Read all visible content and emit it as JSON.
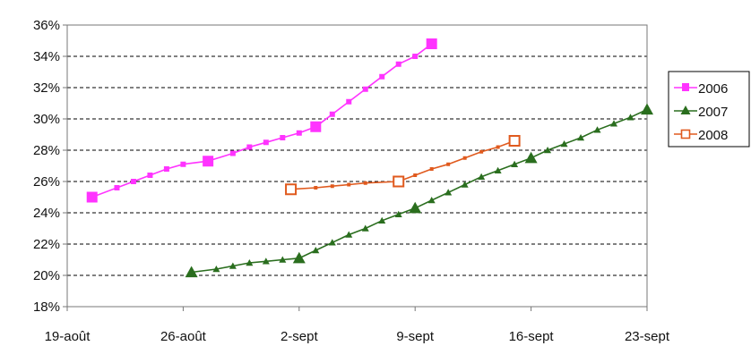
{
  "chart_data": {
    "type": "line",
    "title": "",
    "xlabel": "",
    "ylabel": "",
    "x_ticks": [
      "19-août",
      "26-août",
      "2-sept",
      "9-sept",
      "16-sept",
      "23-sept"
    ],
    "x_range_days": [
      0,
      35
    ],
    "ylim": [
      0.18,
      0.36
    ],
    "y_ticks": [
      "18%",
      "20%",
      "22%",
      "24%",
      "26%",
      "28%",
      "30%",
      "32%",
      "34%",
      "36%"
    ],
    "grid": "horizontal dashed",
    "legend_position": "right",
    "series": [
      {
        "name": "2006",
        "color": "#ff33ff",
        "marker": "square-filled",
        "points": [
          {
            "x": 1.5,
            "y": 0.25,
            "big": true
          },
          {
            "x": 3,
            "y": 0.256
          },
          {
            "x": 4,
            "y": 0.26
          },
          {
            "x": 5,
            "y": 0.264
          },
          {
            "x": 6,
            "y": 0.268
          },
          {
            "x": 7,
            "y": 0.271
          },
          {
            "x": 8.5,
            "y": 0.273,
            "big": true
          },
          {
            "x": 10,
            "y": 0.278
          },
          {
            "x": 11,
            "y": 0.282
          },
          {
            "x": 12,
            "y": 0.285
          },
          {
            "x": 13,
            "y": 0.288
          },
          {
            "x": 14,
            "y": 0.291
          },
          {
            "x": 15,
            "y": 0.295,
            "big": true
          },
          {
            "x": 16,
            "y": 0.303
          },
          {
            "x": 17,
            "y": 0.311
          },
          {
            "x": 18,
            "y": 0.319
          },
          {
            "x": 19,
            "y": 0.327
          },
          {
            "x": 20,
            "y": 0.335
          },
          {
            "x": 21,
            "y": 0.34
          },
          {
            "x": 22,
            "y": 0.348,
            "big": true
          }
        ]
      },
      {
        "name": "2007",
        "color": "#2a6e1e",
        "marker": "triangle-filled",
        "points": [
          {
            "x": 7.5,
            "y": 0.202,
            "big": true
          },
          {
            "x": 9,
            "y": 0.204
          },
          {
            "x": 10,
            "y": 0.206
          },
          {
            "x": 11,
            "y": 0.208
          },
          {
            "x": 12,
            "y": 0.209
          },
          {
            "x": 13,
            "y": 0.21
          },
          {
            "x": 14,
            "y": 0.211,
            "big": true
          },
          {
            "x": 15,
            "y": 0.216
          },
          {
            "x": 16,
            "y": 0.221
          },
          {
            "x": 17,
            "y": 0.226
          },
          {
            "x": 18,
            "y": 0.23
          },
          {
            "x": 19,
            "y": 0.235
          },
          {
            "x": 20,
            "y": 0.239
          },
          {
            "x": 21,
            "y": 0.243,
            "big": true
          },
          {
            "x": 22,
            "y": 0.248
          },
          {
            "x": 23,
            "y": 0.253
          },
          {
            "x": 24,
            "y": 0.258
          },
          {
            "x": 25,
            "y": 0.263
          },
          {
            "x": 26,
            "y": 0.267
          },
          {
            "x": 27,
            "y": 0.271
          },
          {
            "x": 28,
            "y": 0.275,
            "big": true
          },
          {
            "x": 29,
            "y": 0.28
          },
          {
            "x": 30,
            "y": 0.284
          },
          {
            "x": 31,
            "y": 0.288
          },
          {
            "x": 32,
            "y": 0.293
          },
          {
            "x": 33,
            "y": 0.297
          },
          {
            "x": 34,
            "y": 0.301
          },
          {
            "x": 35,
            "y": 0.306,
            "big": true
          }
        ]
      },
      {
        "name": "2008",
        "color": "#e05a1e",
        "marker": "square-open",
        "points": [
          {
            "x": 13.5,
            "y": 0.255,
            "big": true
          },
          {
            "x": 15,
            "y": 0.256
          },
          {
            "x": 16,
            "y": 0.257
          },
          {
            "x": 17,
            "y": 0.258
          },
          {
            "x": 18,
            "y": 0.259
          },
          {
            "x": 20,
            "y": 0.26,
            "big": true
          },
          {
            "x": 21,
            "y": 0.264
          },
          {
            "x": 22,
            "y": 0.268
          },
          {
            "x": 23,
            "y": 0.271
          },
          {
            "x": 24,
            "y": 0.275
          },
          {
            "x": 25,
            "y": 0.279
          },
          {
            "x": 26,
            "y": 0.282
          },
          {
            "x": 27,
            "y": 0.286,
            "big": true
          }
        ]
      }
    ]
  }
}
